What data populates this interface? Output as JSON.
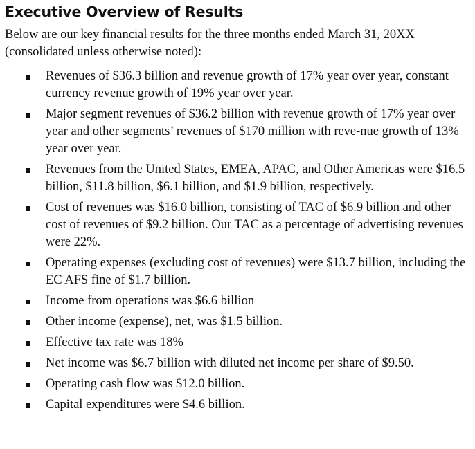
{
  "document": {
    "title": "Executive Overview of Results",
    "intro": "Below are our key financial results for the three months ended March 31, 20XX (consolidated unless otherwise noted):",
    "bullets": [
      "Revenues of $36.3 billion and revenue growth of 17% year over year, constant currency revenue growth of 19% year over year.",
      "Major segment revenues of $36.2 billion with revenue growth of 17% year over year and other segments’ revenues of $170 million with reve-nue growth of 13% year over year.",
      "Revenues from the United States, EMEA, APAC, and Other Americas were $16.5 billion, $11.8 billion, $6.1 billion, and $1.9 billion, respectively.",
      "Cost of revenues was $16.0 billion, consisting of TAC of $6.9 billion and other cost of revenues of $9.2 billion. Our TAC as a percentage of advertising revenues were 22%.",
      "Operating expenses (excluding cost of revenues) were $13.7 billion, including the EC AFS fine of $1.7 billion.",
      "Income from operations was $6.6 billion",
      "Other income (expense), net, was $1.5 billion.",
      "Effective tax rate was 18%",
      "Net income was $6.7 billion with diluted net income per share of $9.50.",
      "Operating cash flow was $12.0 billion.",
      "Capital expenditures were $4.6 billion."
    ]
  }
}
